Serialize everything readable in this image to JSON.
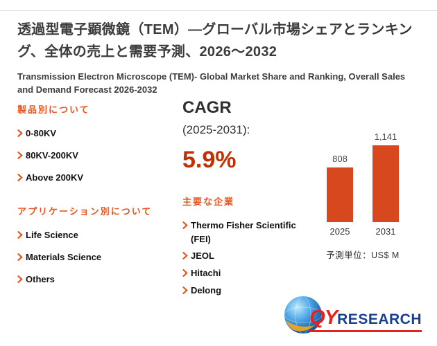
{
  "header": {
    "title_ja": "透過型電子顕微鏡（TEM）—グローバル市場シェアとランキング、全体の売上と需要予測、2026～2032",
    "subtitle_en": "Transmission Electron Microscope (TEM)- Global Market Share and Ranking, Overall Sales and Demand Forecast 2026-2032"
  },
  "products": {
    "heading": "製品別について",
    "items": [
      "0-80KV",
      "80KV-200KV",
      "Above 200KV"
    ]
  },
  "applications": {
    "heading": "アプリケーション別について",
    "items": [
      "Life Science",
      "Materials Science",
      "Others"
    ]
  },
  "cagr": {
    "label": "CAGR",
    "period": "(2025-2031):",
    "value": "5.9%",
    "value_color": "#c22f02"
  },
  "companies": {
    "heading": "主要な企業",
    "items": [
      "Thermo Fisher Scientific (FEI)",
      "JEOL",
      "Hitachi",
      "Delong"
    ]
  },
  "chart_data": {
    "type": "bar",
    "categories": [
      "2025",
      "2031"
    ],
    "values": [
      808,
      1141
    ],
    "value_labels": [
      "808",
      "1,141"
    ],
    "title": "",
    "xlabel": "",
    "ylabel": "",
    "ylim": [
      0,
      1200
    ],
    "grid": false,
    "legend": "none",
    "unit_note": "予測単位：US$ M",
    "bar_color": "#d8481f"
  },
  "logo": {
    "text_qy": "QY",
    "text_research": "RESEARCH",
    "qy_color": "#e4231c",
    "research_color": "#1b3f8f",
    "underline_color": "#e4231c"
  },
  "colors": {
    "accent_orange": "#e8551e",
    "title_gray": "#3b3b3b",
    "body_text": "#111111"
  }
}
